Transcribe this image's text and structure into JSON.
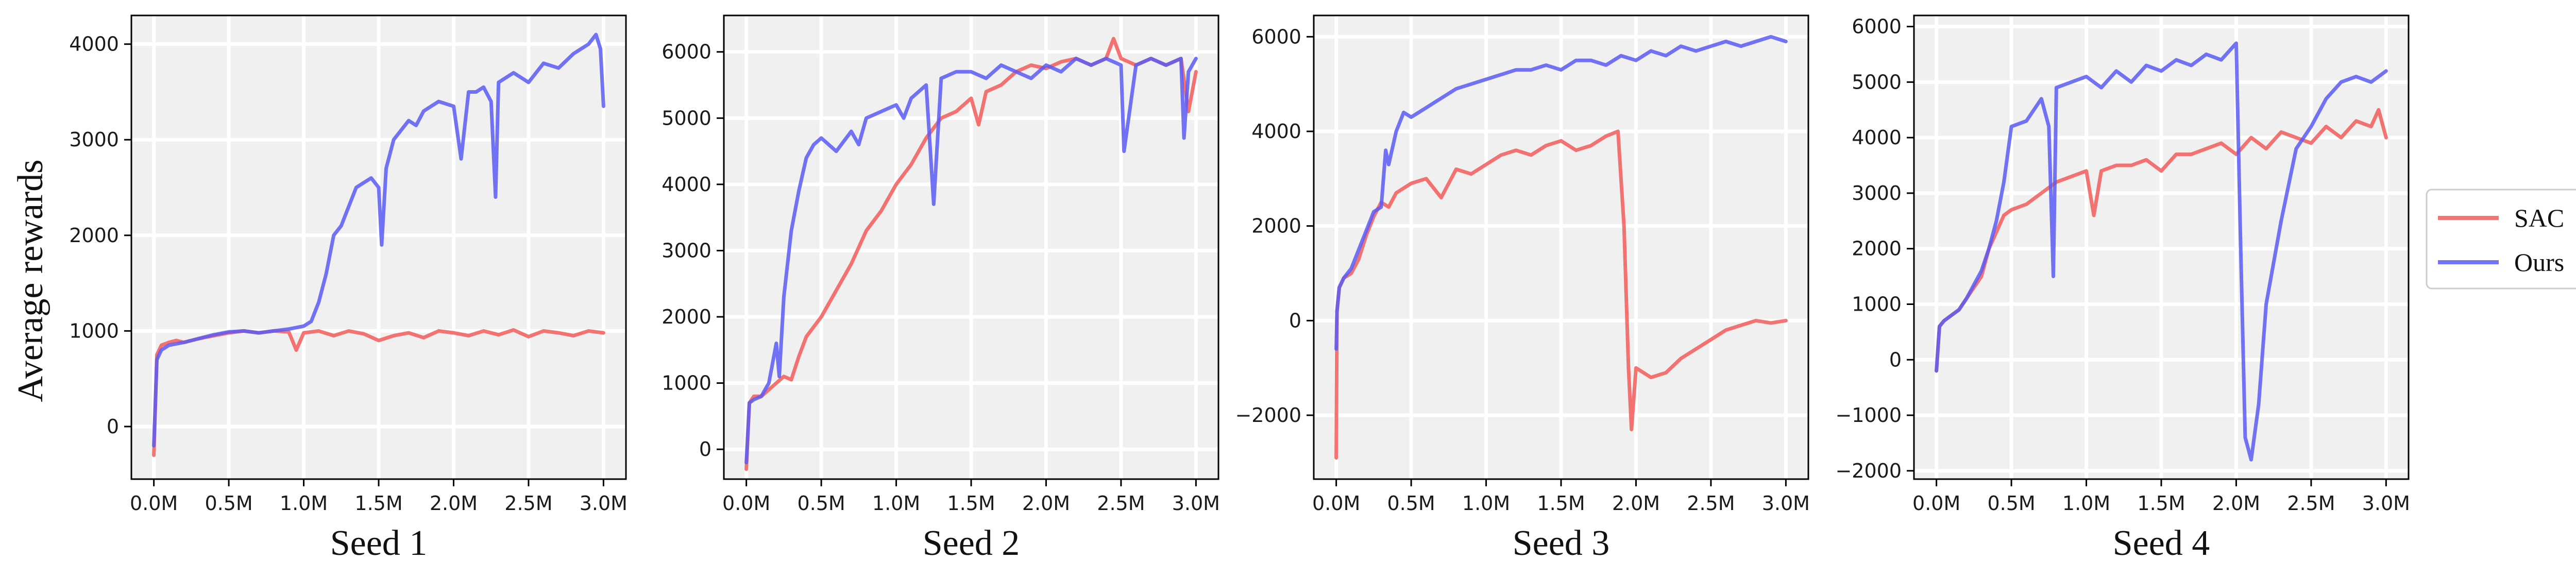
{
  "figure": {
    "ylabel": "Average rewards",
    "legend": {
      "placement": "right",
      "entries": [
        {
          "name": "SAC",
          "color": "#f25c5c"
        },
        {
          "name": "Ours",
          "color": "#5b5bf5"
        }
      ]
    },
    "plot_background": "#f0f0f0",
    "grid": true
  },
  "chart_data": [
    {
      "type": "line",
      "title": "Seed 1",
      "xlim": [
        -0.15,
        3.15
      ],
      "ylim": [
        -550,
        4300
      ],
      "xticks": [
        0,
        0.5,
        1.0,
        1.5,
        2.0,
        2.5,
        3.0
      ],
      "xtick_labels": [
        "0.0M",
        "0.5M",
        "1.0M",
        "1.5M",
        "2.0M",
        "2.5M",
        "3.0M"
      ],
      "yticks": [
        0,
        1000,
        2000,
        3000,
        4000
      ],
      "ytick_labels": [
        "0",
        "1000",
        "2000",
        "3000",
        "4000"
      ],
      "series": [
        {
          "name": "SAC",
          "color": "#f25c5c",
          "x": [
            0.0,
            0.02,
            0.05,
            0.1,
            0.15,
            0.2,
            0.3,
            0.4,
            0.5,
            0.6,
            0.7,
            0.8,
            0.9,
            0.95,
            1.0,
            1.1,
            1.2,
            1.3,
            1.4,
            1.5,
            1.6,
            1.7,
            1.8,
            1.9,
            2.0,
            2.1,
            2.2,
            2.3,
            2.4,
            2.5,
            2.6,
            2.7,
            2.8,
            2.9,
            3.0
          ],
          "y": [
            -300,
            750,
            850,
            880,
            900,
            880,
            920,
            950,
            980,
            1000,
            980,
            1000,
            990,
            800,
            980,
            1000,
            950,
            1000,
            970,
            900,
            950,
            980,
            930,
            1000,
            980,
            950,
            1000,
            960,
            1010,
            940,
            1000,
            980,
            950,
            1000,
            980
          ]
        },
        {
          "name": "Ours",
          "color": "#5b5bf5",
          "x": [
            0.0,
            0.02,
            0.05,
            0.1,
            0.2,
            0.3,
            0.4,
            0.5,
            0.6,
            0.7,
            0.8,
            0.9,
            1.0,
            1.05,
            1.1,
            1.15,
            1.2,
            1.25,
            1.3,
            1.35,
            1.4,
            1.45,
            1.5,
            1.52,
            1.55,
            1.6,
            1.65,
            1.7,
            1.75,
            1.8,
            1.9,
            2.0,
            2.05,
            2.1,
            2.15,
            2.2,
            2.25,
            2.28,
            2.3,
            2.35,
            2.4,
            2.5,
            2.6,
            2.7,
            2.8,
            2.9,
            2.95,
            2.98,
            3.0
          ],
          "y": [
            -200,
            700,
            800,
            850,
            880,
            920,
            960,
            990,
            1000,
            980,
            1000,
            1020,
            1050,
            1100,
            1300,
            1600,
            2000,
            2100,
            2300,
            2500,
            2550,
            2600,
            2500,
            1900,
            2700,
            3000,
            3100,
            3200,
            3150,
            3300,
            3400,
            3350,
            2800,
            3500,
            3500,
            3550,
            3400,
            2400,
            3600,
            3650,
            3700,
            3600,
            3800,
            3750,
            3900,
            4000,
            4100,
            3950,
            3350
          ]
        }
      ]
    },
    {
      "type": "line",
      "title": "Seed 2",
      "xlim": [
        -0.15,
        3.15
      ],
      "ylim": [
        -450,
        6550
      ],
      "xticks": [
        0,
        0.5,
        1.0,
        1.5,
        2.0,
        2.5,
        3.0
      ],
      "xtick_labels": [
        "0.0M",
        "0.5M",
        "1.0M",
        "1.5M",
        "2.0M",
        "2.5M",
        "3.0M"
      ],
      "yticks": [
        0,
        1000,
        2000,
        3000,
        4000,
        5000,
        6000
      ],
      "ytick_labels": [
        "0",
        "1000",
        "2000",
        "3000",
        "4000",
        "5000",
        "6000"
      ],
      "series": [
        {
          "name": "SAC",
          "color": "#f25c5c",
          "x": [
            0.0,
            0.02,
            0.05,
            0.1,
            0.15,
            0.2,
            0.25,
            0.3,
            0.35,
            0.4,
            0.5,
            0.6,
            0.7,
            0.8,
            0.9,
            1.0,
            1.1,
            1.2,
            1.3,
            1.4,
            1.5,
            1.55,
            1.6,
            1.7,
            1.8,
            1.9,
            2.0,
            2.1,
            2.2,
            2.3,
            2.4,
            2.45,
            2.5,
            2.6,
            2.7,
            2.8,
            2.9,
            2.95,
            3.0
          ],
          "y": [
            -300,
            700,
            800,
            800,
            900,
            1000,
            1100,
            1050,
            1400,
            1700,
            2000,
            2400,
            2800,
            3300,
            3600,
            4000,
            4300,
            4700,
            5000,
            5100,
            5300,
            4900,
            5400,
            5500,
            5700,
            5800,
            5750,
            5850,
            5900,
            5800,
            5900,
            6200,
            5900,
            5800,
            5900,
            5800,
            5900,
            5100,
            5700
          ]
        },
        {
          "name": "Ours",
          "color": "#5b5bf5",
          "x": [
            0.0,
            0.02,
            0.05,
            0.1,
            0.15,
            0.2,
            0.22,
            0.25,
            0.3,
            0.35,
            0.4,
            0.45,
            0.5,
            0.6,
            0.7,
            0.75,
            0.8,
            0.9,
            1.0,
            1.05,
            1.1,
            1.15,
            1.2,
            1.25,
            1.3,
            1.4,
            1.5,
            1.6,
            1.7,
            1.8,
            1.9,
            2.0,
            2.1,
            2.2,
            2.3,
            2.4,
            2.5,
            2.52,
            2.6,
            2.7,
            2.8,
            2.9,
            2.92,
            2.95,
            3.0
          ],
          "y": [
            -200,
            700,
            750,
            800,
            1000,
            1600,
            1100,
            2300,
            3300,
            3900,
            4400,
            4600,
            4700,
            4500,
            4800,
            4600,
            5000,
            5100,
            5200,
            5000,
            5300,
            5400,
            5500,
            3700,
            5600,
            5700,
            5700,
            5600,
            5800,
            5700,
            5600,
            5800,
            5700,
            5900,
            5800,
            5900,
            5800,
            4500,
            5800,
            5900,
            5800,
            5900,
            4700,
            5700,
            5900
          ]
        }
      ]
    },
    {
      "type": "line",
      "title": "Seed 3",
      "xlim": [
        -0.15,
        3.15
      ],
      "ylim": [
        -3350,
        6450
      ],
      "xticks": [
        0,
        0.5,
        1.0,
        1.5,
        2.0,
        2.5,
        3.0
      ],
      "xtick_labels": [
        "0.0M",
        "0.5M",
        "1.0M",
        "1.5M",
        "2.0M",
        "2.5M",
        "3.0M"
      ],
      "yticks": [
        -2000,
        0,
        2000,
        4000,
        6000
      ],
      "ytick_labels": [
        "−2000",
        "0",
        "2000",
        "4000",
        "6000"
      ],
      "series": [
        {
          "name": "SAC",
          "color": "#f25c5c",
          "x": [
            0.0,
            0.005,
            0.02,
            0.05,
            0.1,
            0.15,
            0.2,
            0.25,
            0.3,
            0.35,
            0.4,
            0.5,
            0.6,
            0.7,
            0.8,
            0.9,
            1.0,
            1.1,
            1.2,
            1.3,
            1.4,
            1.5,
            1.6,
            1.7,
            1.8,
            1.88,
            1.92,
            1.95,
            1.97,
            2.0,
            2.1,
            2.2,
            2.3,
            2.4,
            2.5,
            2.6,
            2.7,
            2.8,
            2.9,
            3.0
          ],
          "y": [
            -2900,
            200,
            700,
            900,
            1000,
            1300,
            1800,
            2200,
            2500,
            2400,
            2700,
            2900,
            3000,
            2600,
            3200,
            3100,
            3300,
            3500,
            3600,
            3500,
            3700,
            3800,
            3600,
            3700,
            3900,
            4000,
            2000,
            -1000,
            -2300,
            -1000,
            -1200,
            -1100,
            -800,
            -600,
            -400,
            -200,
            -100,
            0,
            -50,
            0
          ]
        },
        {
          "name": "Ours",
          "color": "#5b5bf5",
          "x": [
            0.0,
            0.005,
            0.02,
            0.05,
            0.1,
            0.15,
            0.2,
            0.25,
            0.3,
            0.33,
            0.35,
            0.4,
            0.45,
            0.5,
            0.6,
            0.7,
            0.8,
            0.9,
            1.0,
            1.1,
            1.2,
            1.3,
            1.4,
            1.5,
            1.6,
            1.7,
            1.8,
            1.9,
            2.0,
            2.1,
            2.2,
            2.3,
            2.4,
            2.5,
            2.6,
            2.7,
            2.8,
            2.9,
            3.0
          ],
          "y": [
            -600,
            200,
            700,
            900,
            1100,
            1500,
            1900,
            2300,
            2400,
            3600,
            3300,
            4000,
            4400,
            4300,
            4500,
            4700,
            4900,
            5000,
            5100,
            5200,
            5300,
            5300,
            5400,
            5300,
            5500,
            5500,
            5400,
            5600,
            5500,
            5700,
            5600,
            5800,
            5700,
            5800,
            5900,
            5800,
            5900,
            6000,
            5900
          ]
        }
      ]
    },
    {
      "type": "line",
      "title": "Seed 4",
      "xlim": [
        -0.15,
        3.15
      ],
      "ylim": [
        -2150,
        6200
      ],
      "xticks": [
        0,
        0.5,
        1.0,
        1.5,
        2.0,
        2.5,
        3.0
      ],
      "xtick_labels": [
        "0.0M",
        "0.5M",
        "1.0M",
        "1.5M",
        "2.0M",
        "2.5M",
        "3.0M"
      ],
      "yticks": [
        -2000,
        -1000,
        0,
        1000,
        2000,
        3000,
        4000,
        5000,
        6000
      ],
      "ytick_labels": [
        "−2000",
        "−1000",
        "0",
        "1000",
        "2000",
        "3000",
        "4000",
        "5000",
        "6000"
      ],
      "series": [
        {
          "name": "SAC",
          "color": "#f25c5c",
          "x": [
            0.0,
            0.02,
            0.05,
            0.1,
            0.15,
            0.2,
            0.3,
            0.35,
            0.4,
            0.45,
            0.5,
            0.6,
            0.7,
            0.8,
            0.9,
            1.0,
            1.05,
            1.1,
            1.2,
            1.3,
            1.4,
            1.5,
            1.6,
            1.7,
            1.8,
            1.9,
            2.0,
            2.1,
            2.2,
            2.3,
            2.4,
            2.5,
            2.6,
            2.7,
            2.8,
            2.9,
            2.95,
            3.0
          ],
          "y": [
            -200,
            600,
            700,
            800,
            900,
            1100,
            1500,
            2000,
            2300,
            2600,
            2700,
            2800,
            3000,
            3200,
            3300,
            3400,
            2600,
            3400,
            3500,
            3500,
            3600,
            3400,
            3700,
            3700,
            3800,
            3900,
            3700,
            4000,
            3800,
            4100,
            4000,
            3900,
            4200,
            4000,
            4300,
            4200,
            4500,
            4000
          ]
        },
        {
          "name": "Ours",
          "color": "#5b5bf5",
          "x": [
            0.0,
            0.02,
            0.05,
            0.1,
            0.15,
            0.2,
            0.3,
            0.35,
            0.4,
            0.45,
            0.5,
            0.6,
            0.7,
            0.75,
            0.78,
            0.8,
            0.9,
            1.0,
            1.1,
            1.2,
            1.3,
            1.4,
            1.5,
            1.6,
            1.7,
            1.8,
            1.9,
            2.0,
            2.03,
            2.06,
            2.1,
            2.15,
            2.2,
            2.3,
            2.4,
            2.5,
            2.6,
            2.7,
            2.8,
            2.9,
            3.0
          ],
          "y": [
            -200,
            600,
            700,
            800,
            900,
            1100,
            1600,
            2000,
            2500,
            3200,
            4200,
            4300,
            4700,
            4200,
            1500,
            4900,
            5000,
            5100,
            4900,
            5200,
            5000,
            5300,
            5200,
            5400,
            5300,
            5500,
            5400,
            5700,
            2000,
            -1400,
            -1800,
            -800,
            1000,
            2500,
            3800,
            4200,
            4700,
            5000,
            5100,
            5000,
            5200
          ]
        }
      ]
    }
  ]
}
